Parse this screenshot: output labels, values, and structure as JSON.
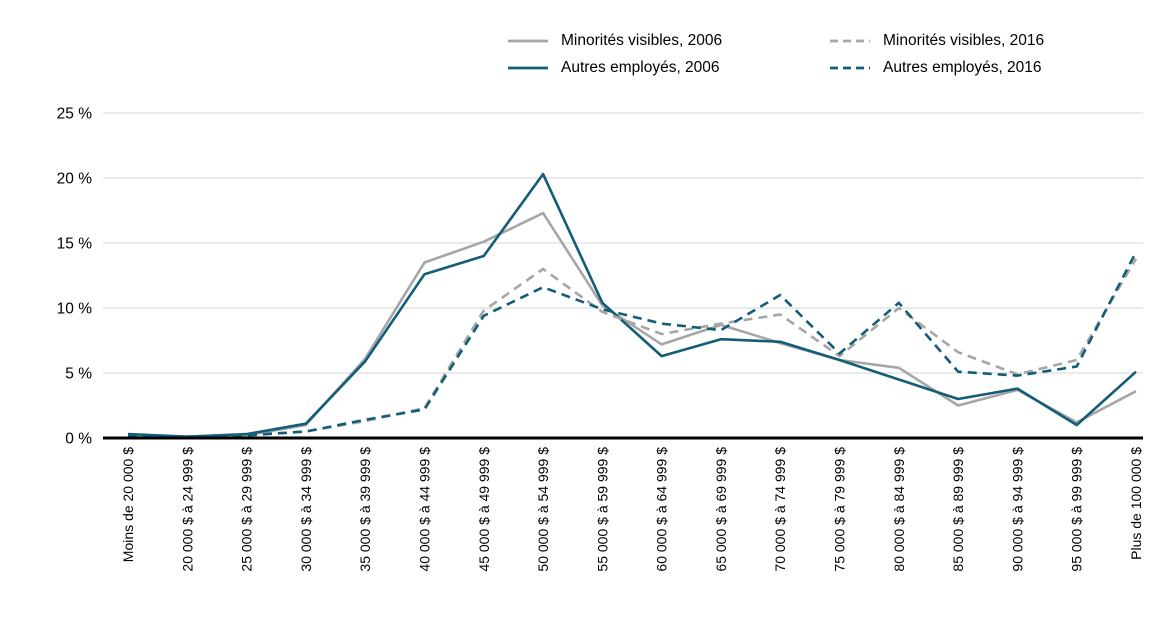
{
  "chart_data": {
    "type": "line",
    "title": "",
    "xlabel": "",
    "ylabel": "",
    "ylim": [
      0,
      25
    ],
    "yticks": [
      0,
      5,
      10,
      15,
      20,
      25
    ],
    "ytick_suffix": " %",
    "grid": "horizontal",
    "legend_position": "top",
    "categories": [
      "Moins de 20 000 $",
      "20 000 $ à 24 999 $",
      "25 000 $ à 29 999 $",
      "30 000 $ à 34 999 $",
      "35 000 $ à 39 999 $",
      "40 000 $ à 44 999 $",
      "45 000 $ à 49 999 $",
      "50 000 $ à 54 999 $",
      "55 000 $ à 59 999 $",
      "60 000 $ à 64 999 $",
      "65 000 $ à 69 999 $",
      "70 000 $ à 74 999 $",
      "75 000 $ à 79 999 $",
      "80 000 $ à 84 999 $",
      "85 000 $ à 89 999 $",
      "90 000 $ à 94 999 $",
      "95 000 $ à 99 999 $",
      "Plus de 100 000 $"
    ],
    "series": [
      {
        "name": "Minorités visibles, 2006",
        "color": "#a6a6a6",
        "dash": "solid",
        "values": [
          0.2,
          0.1,
          0.2,
          1.0,
          6.1,
          13.5,
          15.1,
          17.3,
          10.2,
          7.2,
          8.7,
          7.3,
          6.0,
          5.4,
          2.5,
          3.7,
          1.2,
          3.6
        ]
      },
      {
        "name": "Autres employés, 2006",
        "color": "#135d77",
        "dash": "solid",
        "values": [
          0.3,
          0.1,
          0.3,
          1.1,
          5.9,
          12.6,
          14.0,
          20.3,
          10.4,
          6.3,
          7.6,
          7.4,
          6.0,
          4.5,
          3.0,
          3.8,
          1.0,
          5.1
        ]
      },
      {
        "name": "Minorités visibles, 2016",
        "color": "#a6a6a6",
        "dash": "dashed",
        "values": [
          0.1,
          0.1,
          0.2,
          0.5,
          1.3,
          2.3,
          9.8,
          13.0,
          9.7,
          8.0,
          8.8,
          9.5,
          6.3,
          10.0,
          6.6,
          4.9,
          6.0,
          13.8
        ]
      },
      {
        "name": "Autres employés, 2016",
        "color": "#135d77",
        "dash": "dashed",
        "values": [
          0.2,
          0.1,
          0.2,
          0.5,
          1.4,
          2.2,
          9.4,
          11.6,
          9.9,
          8.8,
          8.3,
          11.0,
          6.5,
          10.4,
          5.1,
          4.8,
          5.5,
          14.3
        ]
      }
    ]
  }
}
